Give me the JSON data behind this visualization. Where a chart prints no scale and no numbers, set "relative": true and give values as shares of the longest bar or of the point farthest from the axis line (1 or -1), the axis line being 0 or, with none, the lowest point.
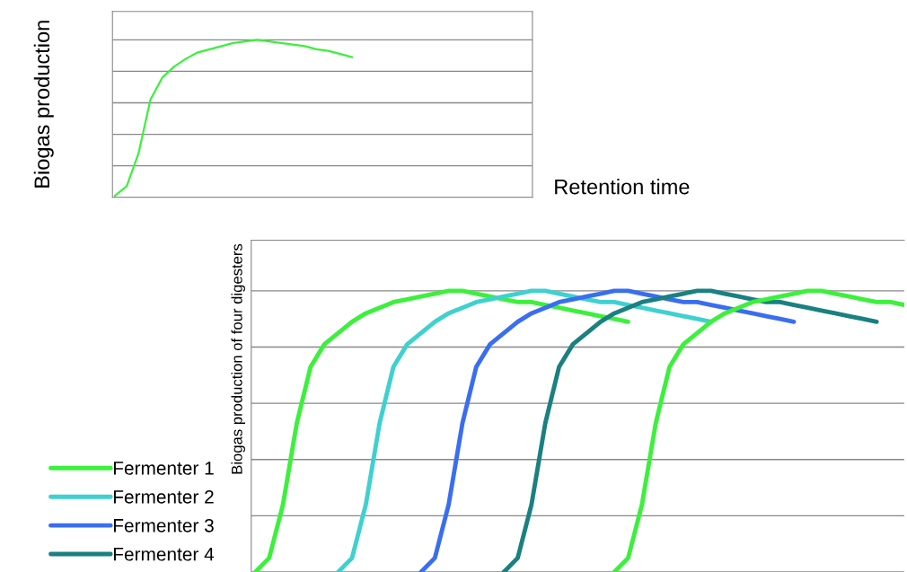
{
  "chart_data": [
    {
      "type": "line",
      "relative": true,
      "ylabel": "Biogas production",
      "xlabel": "Retention time",
      "grid": "y",
      "categories": [
        null,
        null,
        null,
        null,
        null,
        null,
        null,
        null,
        null,
        null,
        null,
        null,
        null,
        null,
        null,
        null,
        null,
        null,
        null,
        null,
        null,
        null,
        null,
        null,
        null,
        null,
        null,
        null,
        null,
        null,
        null,
        null,
        null,
        null,
        null,
        null
      ],
      "series": [
        {
          "color": "#3cf03c",
          "values": [
            0.01,
            0.07,
            0.28,
            0.62,
            0.76,
            0.83,
            0.88,
            0.92,
            0.94,
            0.96,
            0.98,
            0.99,
            1.0,
            0.99,
            0.98,
            0.97,
            0.96,
            0.94,
            0.93,
            0.91,
            0.89,
            null,
            null,
            null,
            null,
            null,
            null,
            null,
            null,
            null,
            null,
            null,
            null,
            null,
            null,
            null
          ]
        }
      ]
    },
    {
      "type": "line",
      "relative": true,
      "ylabel": "Biogas production of four digesters",
      "grid": "y",
      "legend": "bottom left",
      "categories": [
        null,
        null,
        null,
        null,
        null,
        null,
        null,
        null,
        null,
        null,
        null,
        null,
        null,
        null,
        null,
        null,
        null,
        null,
        null,
        null,
        null,
        null,
        null,
        null,
        null,
        null,
        null,
        null,
        null,
        null,
        null,
        null,
        null,
        null,
        null,
        null,
        null,
        null,
        null,
        null,
        null,
        null,
        null,
        null,
        null,
        null,
        null,
        null
      ],
      "series": [
        {
          "name": "Fermenter 1",
          "color": "#3cf03c",
          "values": [
            0,
            0.05,
            0.24,
            0.53,
            0.73,
            0.81,
            0.85,
            0.89,
            0.92,
            0.94,
            0.96,
            0.97,
            0.98,
            0.99,
            1.0,
            1.0,
            0.99,
            0.98,
            0.97,
            0.96,
            0.96,
            0.95,
            0.94,
            0.93,
            0.92,
            0.91,
            0.9,
            0.89,
            null,
            null,
            null,
            null,
            null,
            null,
            null,
            null,
            null,
            null,
            null,
            null,
            null,
            null,
            null,
            null,
            null,
            null,
            null,
            null
          ]
        },
        {
          "name": "Fermenter 2",
          "color": "#40d0d0",
          "values": [
            null,
            null,
            null,
            null,
            null,
            null,
            0,
            0.05,
            0.24,
            0.53,
            0.73,
            0.81,
            0.85,
            0.89,
            0.92,
            0.94,
            0.96,
            0.97,
            0.98,
            0.99,
            1.0,
            1.0,
            0.99,
            0.98,
            0.97,
            0.96,
            0.96,
            0.95,
            0.94,
            0.93,
            0.92,
            0.91,
            0.9,
            0.89,
            null,
            null,
            null,
            null,
            null,
            null,
            null,
            null,
            null,
            null,
            null,
            null,
            null,
            null
          ]
        },
        {
          "name": "Fermenter 3",
          "color": "#3a6ef0",
          "values": [
            null,
            null,
            null,
            null,
            null,
            null,
            null,
            null,
            null,
            null,
            null,
            null,
            0,
            0.05,
            0.24,
            0.53,
            0.73,
            0.81,
            0.85,
            0.89,
            0.92,
            0.94,
            0.96,
            0.97,
            0.98,
            0.99,
            1.0,
            1.0,
            0.99,
            0.98,
            0.97,
            0.96,
            0.96,
            0.95,
            0.94,
            0.93,
            0.92,
            0.91,
            0.9,
            0.89,
            null,
            null,
            null,
            null,
            null,
            null,
            null,
            null
          ]
        },
        {
          "name": "Fermenter 4",
          "color": "#1a8080",
          "values": [
            null,
            null,
            null,
            null,
            null,
            null,
            null,
            null,
            null,
            null,
            null,
            null,
            null,
            null,
            null,
            null,
            null,
            null,
            0,
            0.05,
            0.24,
            0.53,
            0.73,
            0.81,
            0.85,
            0.89,
            0.92,
            0.94,
            0.96,
            0.97,
            0.98,
            0.99,
            1.0,
            1.0,
            0.99,
            0.98,
            0.97,
            0.96,
            0.96,
            0.95,
            0.94,
            0.93,
            0.92,
            0.91,
            0.9,
            0.89,
            null,
            null
          ]
        },
        {
          "color": "#3cf03c",
          "values": [
            null,
            null,
            null,
            null,
            null,
            null,
            null,
            null,
            null,
            null,
            null,
            null,
            null,
            null,
            null,
            null,
            null,
            null,
            null,
            null,
            null,
            null,
            null,
            null,
            null,
            null,
            0,
            0.05,
            0.24,
            0.53,
            0.73,
            0.81,
            0.85,
            0.89,
            0.92,
            0.94,
            0.96,
            0.97,
            0.98,
            0.99,
            1.0,
            1.0,
            0.99,
            0.98,
            0.97,
            0.96,
            0.96,
            0.95
          ]
        }
      ]
    }
  ]
}
